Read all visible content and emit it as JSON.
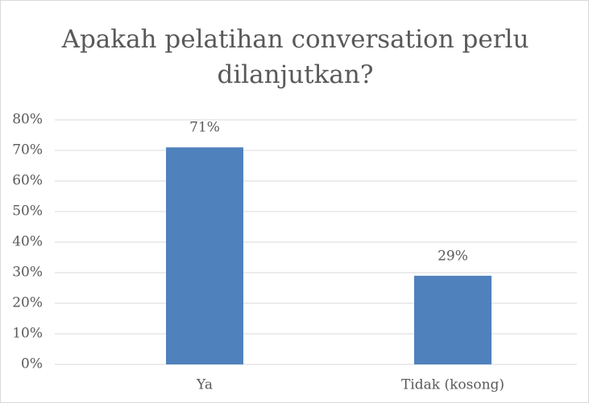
{
  "chart_data": {
    "type": "bar",
    "title": "Apakah pelatihan conversation perlu dilanjutkan?",
    "categories": [
      "Ya",
      "Tidak (kosong)"
    ],
    "values": [
      71,
      29
    ],
    "value_labels": [
      "71%",
      "29%"
    ],
    "color": "#4f81bd",
    "ylim": [
      0,
      80
    ],
    "yticks": [
      {
        "value": 0,
        "label": "0%"
      },
      {
        "value": 10,
        "label": "10%"
      },
      {
        "value": 20,
        "label": "20%"
      },
      {
        "value": 30,
        "label": "30%"
      },
      {
        "value": 40,
        "label": "40%"
      },
      {
        "value": 50,
        "label": "50%"
      },
      {
        "value": 60,
        "label": "60%"
      },
      {
        "value": 70,
        "label": "70%"
      },
      {
        "value": 80,
        "label": "80%"
      }
    ],
    "grid": true
  }
}
